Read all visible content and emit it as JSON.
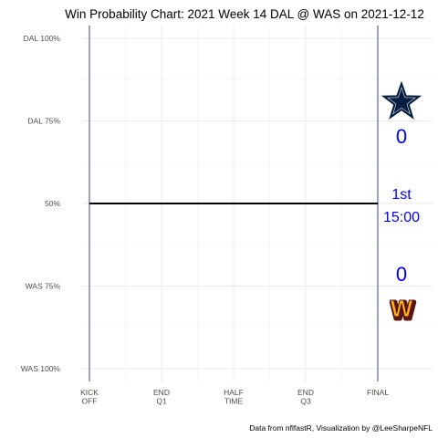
{
  "chart_data": {
    "type": "line",
    "title": "Win Probability Chart: 2021 Week 14 DAL @ WAS on 2021-12-12",
    "xlabel": "",
    "ylabel": "",
    "x_range": [
      0,
      3600
    ],
    "y_range": [
      0,
      1
    ],
    "x_ticks": [
      {
        "value": 0,
        "label": [
          "KICK",
          "OFF"
        ]
      },
      {
        "value": 900,
        "label": [
          "END",
          "Q1"
        ]
      },
      {
        "value": 1800,
        "label": [
          "HALF",
          "TIME"
        ]
      },
      {
        "value": 2700,
        "label": [
          "END",
          "Q3"
        ]
      },
      {
        "value": 3600,
        "label": [
          "FINAL"
        ]
      }
    ],
    "y_ticks": [
      {
        "value": 1.0,
        "label": "DAL 100%"
      },
      {
        "value": 0.75,
        "label": "DAL 75%"
      },
      {
        "value": 0.5,
        "label": "50%"
      },
      {
        "value": 0.25,
        "label": "WAS 75%"
      },
      {
        "value": 0.0,
        "label": "WAS 100%"
      }
    ],
    "series": [
      {
        "x": [
          0,
          3600
        ],
        "y": [
          0.5,
          0.5
        ],
        "color": "#000000"
      }
    ],
    "reference_lines_x": [
      0,
      3600
    ],
    "reference_line_color": "#191970",
    "grid": true,
    "annotations": {
      "home_score": "0",
      "away_score": "0",
      "quarter": "1st",
      "clock": "15:00",
      "text_color": "#0000ff"
    },
    "caption": "Data from nflfastR, Visualization by @LeeSharpeNFL"
  },
  "logos": {
    "top": {
      "icon": "cowboys-star-logo",
      "color": "#041e42"
    },
    "bottom": {
      "icon": "commanders-w-logo",
      "text": "W",
      "fill": "#ffb612",
      "stroke": "#5a1414"
    }
  }
}
